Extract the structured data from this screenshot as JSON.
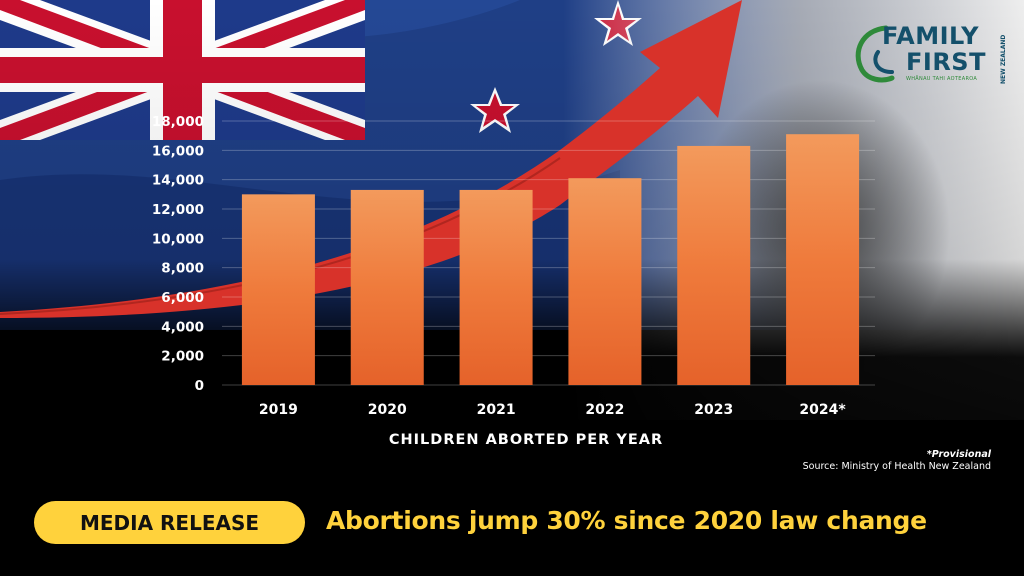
{
  "brand": {
    "logo_line1": "FAMILY",
    "logo_line2": "FIRST",
    "logo_tagline": "WHĀNAU TAHI AOTEAROA",
    "logo_region": "NEW ZEALAND",
    "colors": {
      "logo_blue": "#14506b",
      "logo_green": "#2f8a3a",
      "accent_yellow": "#ffd23c",
      "bar_orange": "#f07a3a",
      "arrow_red": "#d8322a"
    }
  },
  "chart_data": {
    "type": "bar",
    "title": "",
    "xlabel": "CHILDREN ABORTED PER YEAR",
    "ylabel": "",
    "categories": [
      "2019",
      "2020",
      "2021",
      "2022",
      "2023",
      "2024*"
    ],
    "values": [
      13000,
      13300,
      13300,
      14100,
      16300,
      17100
    ],
    "ylim": [
      0,
      18000
    ],
    "yticks": [
      0,
      2000,
      4000,
      6000,
      8000,
      10000,
      12000,
      14000,
      16000,
      18000
    ],
    "ytick_labels": [
      "0",
      "2,000",
      "4,000",
      "6,000",
      "8,000",
      "10,000",
      "12,000",
      "14,000",
      "16,000",
      "18,000"
    ],
    "grid": true,
    "legend": "none"
  },
  "footnote": {
    "note": "*Provisional",
    "source": "Source: Ministry of Health New Zealand"
  },
  "banner": {
    "label": "MEDIA RELEASE",
    "headline": "Abortions jump 30% since 2020 law change"
  }
}
